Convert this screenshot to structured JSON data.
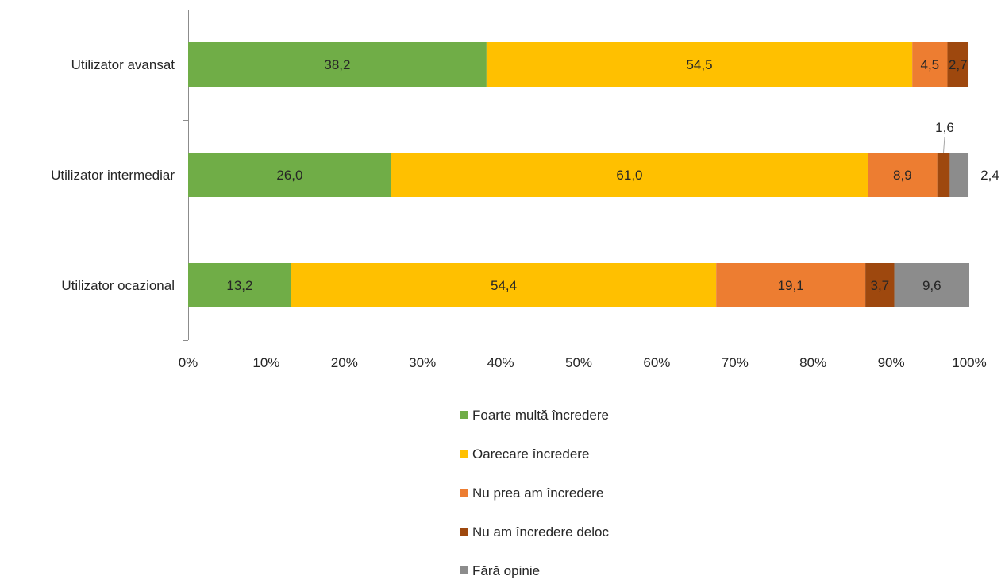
{
  "chart_data": {
    "type": "bar",
    "orientation": "horizontal",
    "stacked": "percent",
    "title": "",
    "xlabel": "",
    "ylabel": "",
    "xlim": [
      0,
      100
    ],
    "x_ticks": [
      "0%",
      "10%",
      "20%",
      "30%",
      "40%",
      "50%",
      "60%",
      "70%",
      "80%",
      "90%",
      "100%"
    ],
    "grid": false,
    "legend_position": "bottom",
    "categories": [
      "Utilizator avansat",
      "Utilizator intermediar",
      "Utilizator ocazional"
    ],
    "series": [
      {
        "name": "Foarte multă încredere",
        "color": "#70ad47",
        "values": [
          38.2,
          26.0,
          13.2
        ],
        "labels": [
          "38,2",
          "26,0",
          "13,2"
        ]
      },
      {
        "name": "Oarecare încredere",
        "color": "#ffc000",
        "values": [
          54.5,
          61.0,
          54.4
        ],
        "labels": [
          "54,5",
          "61,0",
          "54,4"
        ]
      },
      {
        "name": "Nu prea am încredere",
        "color": "#ed7d31",
        "values": [
          4.5,
          8.9,
          19.1
        ],
        "labels": [
          "4,5",
          "8,9",
          "19,1"
        ]
      },
      {
        "name": "Nu am încredere deloc",
        "color": "#9e480e",
        "values": [
          2.7,
          1.6,
          3.7
        ],
        "labels": [
          "2,7",
          "1,6",
          "3,7"
        ]
      },
      {
        "name": "Fără opinie",
        "color": "#8c8c8c",
        "values": [
          0,
          2.4,
          9.6
        ],
        "labels": [
          "",
          "2,4",
          "9,6"
        ]
      }
    ]
  }
}
